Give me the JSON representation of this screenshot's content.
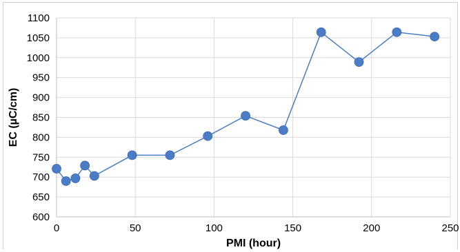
{
  "chart_data": {
    "type": "line",
    "xlabel": "PMI (hour)",
    "ylabel": "EC (µC/cm)",
    "xlim": [
      0,
      250
    ],
    "ylim": [
      600,
      1100
    ],
    "xticks": [
      0,
      50,
      100,
      150,
      200,
      250
    ],
    "yticks": [
      600,
      650,
      700,
      750,
      800,
      850,
      900,
      950,
      1000,
      1050,
      1100
    ],
    "grid": true,
    "legend": "none",
    "series": [
      {
        "color": "#4a7cc7",
        "points": [
          {
            "x": 0,
            "y": 721
          },
          {
            "x": 6,
            "y": 690
          },
          {
            "x": 12,
            "y": 697
          },
          {
            "x": 18,
            "y": 729
          },
          {
            "x": 24,
            "y": 703
          },
          {
            "x": 48,
            "y": 755
          },
          {
            "x": 72,
            "y": 755
          },
          {
            "x": 96,
            "y": 803
          },
          {
            "x": 120,
            "y": 854
          },
          {
            "x": 144,
            "y": 818
          },
          {
            "x": 168,
            "y": 1064
          },
          {
            "x": 192,
            "y": 989
          },
          {
            "x": 216,
            "y": 1064
          },
          {
            "x": 240,
            "y": 1053
          }
        ]
      }
    ]
  }
}
